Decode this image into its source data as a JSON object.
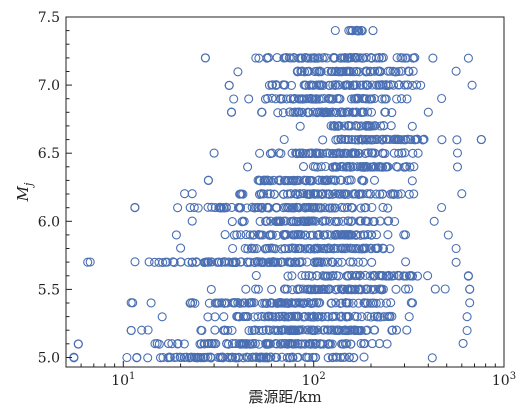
{
  "chart_data": {
    "type": "scatter",
    "xlabel": "震源距/km",
    "ylabel": "M",
    "ylabel_sub": "j",
    "x_scale": "log",
    "xlim": [
      5,
      1000
    ],
    "ylim": [
      4.93,
      7.5
    ],
    "x_ticks": [
      {
        "value": 10,
        "base": "10",
        "exp": "1"
      },
      {
        "value": 100,
        "base": "10",
        "exp": "2"
      },
      {
        "value": 1000,
        "base": "10",
        "exp": "3"
      }
    ],
    "y_ticks": [
      {
        "value": 5.0,
        "label": "5.0"
      },
      {
        "value": 5.5,
        "label": "5.5"
      },
      {
        "value": 6.0,
        "label": "6.0"
      },
      {
        "value": 6.5,
        "label": "6.5"
      },
      {
        "value": 7.0,
        "label": "7.0"
      },
      {
        "value": 7.5,
        "label": "7.5"
      }
    ],
    "grid": false,
    "marker": "open-circle",
    "color": "#4a6fb3",
    "rows": [
      {
        "y": 7.4,
        "from": 130,
        "to": 205
      },
      {
        "y": 7.2,
        "from": 27,
        "to": 650
      },
      {
        "y": 7.1,
        "from": 40,
        "to": 560
      },
      {
        "y": 7.0,
        "from": 36,
        "to": 680
      },
      {
        "y": 6.9,
        "from": 38,
        "to": 470
      },
      {
        "y": 6.8,
        "from": 37,
        "to": 400
      },
      {
        "y": 6.7,
        "from": 85,
        "to": 330
      },
      {
        "y": 6.6,
        "from": 70,
        "to": 760
      },
      {
        "y": 6.5,
        "from": 30,
        "to": 570
      },
      {
        "y": 6.4,
        "from": 45,
        "to": 570
      },
      {
        "y": 6.3,
        "from": 28,
        "to": 330
      },
      {
        "y": 6.2,
        "from": 21,
        "to": 600
      },
      {
        "y": 6.1,
        "from": 11.5,
        "to": 470
      },
      {
        "y": 6.0,
        "from": 23,
        "to": 430
      },
      {
        "y": 5.9,
        "from": 19,
        "to": 510
      },
      {
        "y": 5.8,
        "from": 20,
        "to": 560
      },
      {
        "y": 5.7,
        "from": 6.5,
        "to": 560
      },
      {
        "y": 5.6,
        "from": 50,
        "to": 650
      },
      {
        "y": 5.5,
        "from": 29,
        "to": 660
      },
      {
        "y": 5.4,
        "from": 11,
        "to": 660
      },
      {
        "y": 5.3,
        "from": 16,
        "to": 640
      },
      {
        "y": 5.2,
        "from": 11,
        "to": 640
      },
      {
        "y": 5.1,
        "from": 5.8,
        "to": 610
      },
      {
        "y": 5.0,
        "from": 5.5,
        "to": 420
      }
    ],
    "isolated_points": [
      {
        "x": 5.5,
        "y": 5.0
      },
      {
        "x": 5.8,
        "y": 5.1
      },
      {
        "x": 6.7,
        "y": 5.7
      },
      {
        "x": 11.2,
        "y": 5.4
      },
      {
        "x": 11.5,
        "y": 6.1
      },
      {
        "x": 11,
        "y": 5.2
      },
      {
        "x": 12.5,
        "y": 5.2
      },
      {
        "x": 13.5,
        "y": 5.2
      },
      {
        "x": 17,
        "y": 5.7
      },
      {
        "x": 18.5,
        "y": 5.7
      },
      {
        "x": 20,
        "y": 5.7
      },
      {
        "x": 23,
        "y": 6.2
      },
      {
        "x": 28,
        "y": 6.3
      },
      {
        "x": 27,
        "y": 7.2
      },
      {
        "x": 36,
        "y": 7.0
      },
      {
        "x": 37,
        "y": 6.8
      },
      {
        "x": 760,
        "y": 6.6
      },
      {
        "x": 650,
        "y": 5.6
      },
      {
        "x": 660,
        "y": 5.5
      }
    ]
  }
}
